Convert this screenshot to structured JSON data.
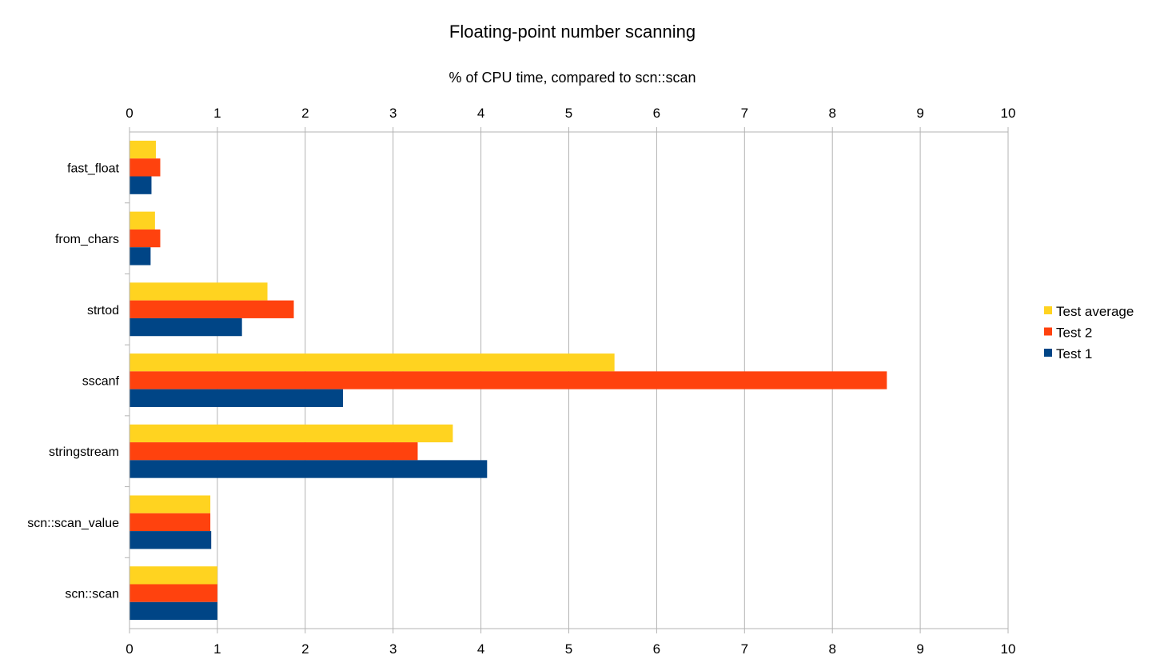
{
  "chart_data": {
    "type": "bar",
    "orientation": "horizontal",
    "title": "Floating-point number scanning",
    "subtitle": "% of CPU time, compared to scn::scan",
    "xlabel": "",
    "ylabel": "",
    "xlim": [
      0,
      10
    ],
    "x_ticks": [
      "0",
      "1",
      "2",
      "3",
      "4",
      "5",
      "6",
      "7",
      "8",
      "9",
      "10"
    ],
    "grid": true,
    "legend_position": "right",
    "categories": [
      "fast_float",
      "from_chars",
      "strtod",
      "sscanf",
      "stringstream",
      "scn::scan_value",
      "scn::scan"
    ],
    "series": [
      {
        "name": "Test average",
        "color": "#ffd320",
        "values": [
          0.3,
          0.29,
          1.57,
          5.52,
          3.68,
          0.92,
          1.0
        ]
      },
      {
        "name": "Test 2",
        "color": "#ff420e",
        "values": [
          0.35,
          0.35,
          1.87,
          8.62,
          3.28,
          0.92,
          1.0
        ]
      },
      {
        "name": "Test 1",
        "color": "#004586",
        "values": [
          0.25,
          0.24,
          1.28,
          2.43,
          4.07,
          0.93,
          1.0
        ]
      }
    ]
  }
}
